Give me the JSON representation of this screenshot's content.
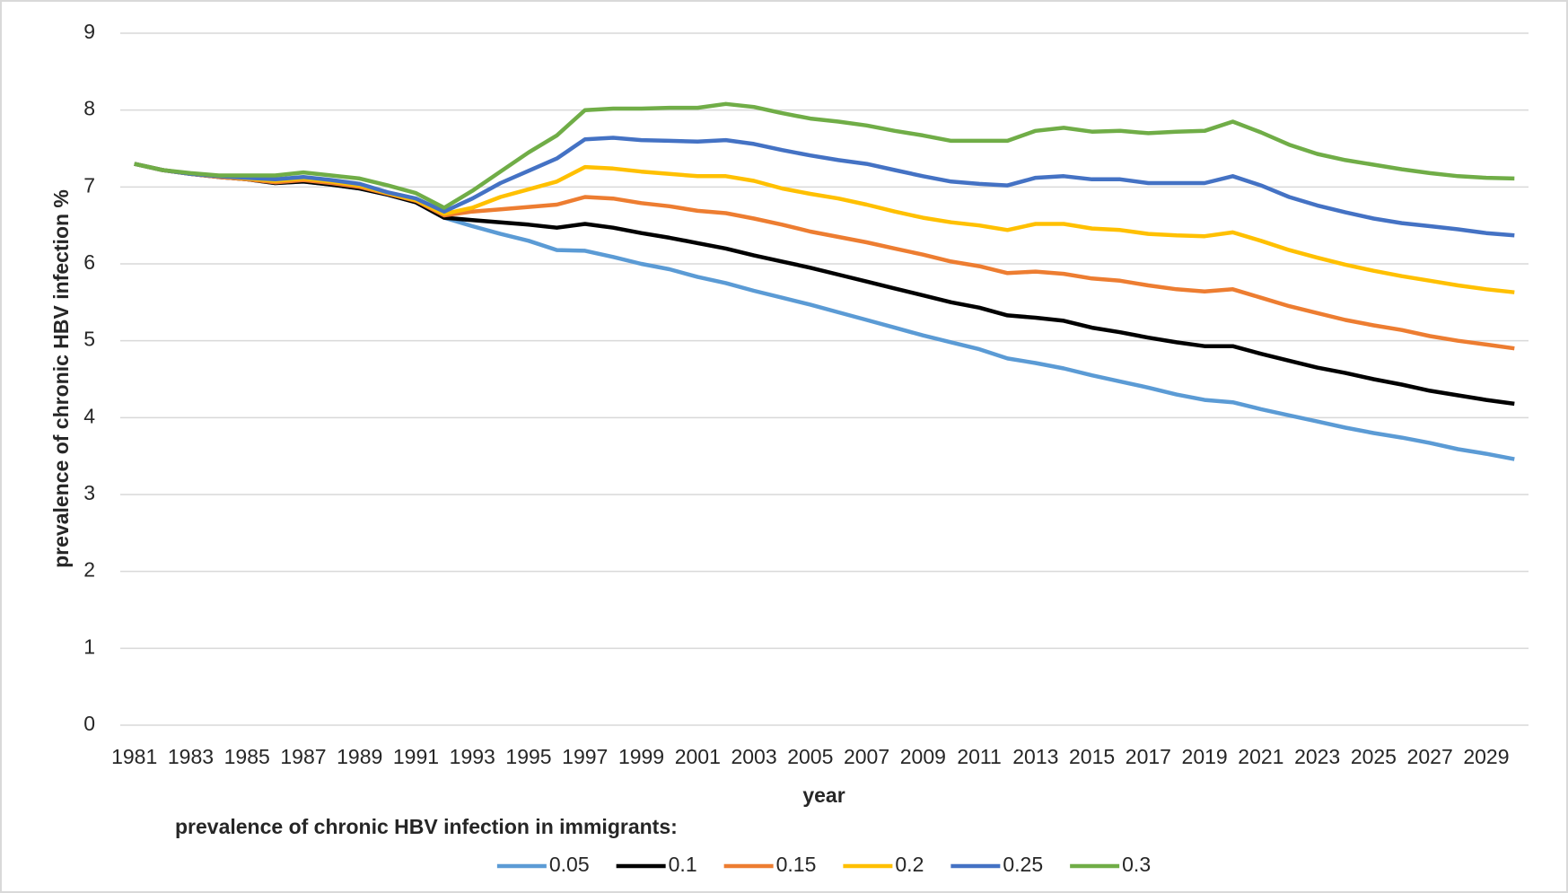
{
  "chart_data": {
    "type": "line",
    "y_label": "prevalence of chronic HBV infection %",
    "x_label": "year",
    "legend_title": "prevalence of chronic HBV infection in immigrants:",
    "categories": [
      "1981",
      null,
      "1983",
      null,
      "1985",
      null,
      "1987",
      null,
      "1989",
      null,
      "1991",
      null,
      "1993",
      null,
      "1995",
      null,
      "1997",
      null,
      "1999",
      null,
      "2001",
      null,
      "2003",
      null,
      "2005",
      null,
      "2007",
      null,
      "2009",
      null,
      "2011",
      null,
      "2013",
      null,
      "2015",
      null,
      "2017",
      null,
      "2019",
      null,
      "2021",
      null,
      "2023",
      null,
      "2025",
      null,
      "2027",
      null,
      "2029",
      null
    ],
    "series": [
      {
        "name": "0.05",
        "color": "#5b9bd5",
        "values": [
          7.3,
          7.22,
          7.17,
          7.13,
          7.1,
          7.05,
          7.07,
          7.03,
          6.98,
          6.9,
          6.8,
          6.6,
          6.49,
          6.39,
          6.3,
          6.18,
          6.17,
          6.09,
          6.0,
          5.93,
          5.83,
          5.75,
          5.65,
          5.56,
          5.47,
          5.37,
          5.27,
          5.17,
          5.07,
          4.98,
          4.89,
          4.77,
          4.71,
          4.64,
          4.55,
          4.47,
          4.39,
          4.3,
          4.23,
          4.2,
          4.11,
          4.03,
          3.95,
          3.87,
          3.8,
          3.74,
          3.67,
          3.59,
          3.53,
          3.46
        ]
      },
      {
        "name": "0.1",
        "color": "#000000",
        "values": [
          7.3,
          7.22,
          7.17,
          7.13,
          7.1,
          7.05,
          7.07,
          7.03,
          6.98,
          6.9,
          6.8,
          6.6,
          6.57,
          6.54,
          6.51,
          6.47,
          6.52,
          6.47,
          6.4,
          6.34,
          6.27,
          6.2,
          6.11,
          6.03,
          5.95,
          5.86,
          5.77,
          5.68,
          5.59,
          5.5,
          5.43,
          5.33,
          5.3,
          5.26,
          5.17,
          5.11,
          5.04,
          4.98,
          4.93,
          4.93,
          4.83,
          4.74,
          4.65,
          4.58,
          4.5,
          4.43,
          4.35,
          4.29,
          4.23,
          4.18
        ]
      },
      {
        "name": "0.15",
        "color": "#ed7d31",
        "values": [
          7.3,
          7.22,
          7.17,
          7.13,
          7.1,
          7.06,
          7.09,
          7.05,
          7.0,
          6.91,
          6.82,
          6.63,
          6.68,
          6.71,
          6.74,
          6.77,
          6.87,
          6.85,
          6.79,
          6.75,
          6.69,
          6.66,
          6.59,
          6.51,
          6.42,
          6.35,
          6.28,
          6.2,
          6.12,
          6.03,
          5.97,
          5.88,
          5.9,
          5.87,
          5.81,
          5.78,
          5.72,
          5.67,
          5.64,
          5.67,
          5.56,
          5.45,
          5.36,
          5.27,
          5.2,
          5.14,
          5.06,
          5.0,
          4.95,
          4.9
        ]
      },
      {
        "name": "0.2",
        "color": "#ffc000",
        "values": [
          7.3,
          7.22,
          7.17,
          7.14,
          7.11,
          7.08,
          7.11,
          7.07,
          7.02,
          6.92,
          6.83,
          6.65,
          6.73,
          6.87,
          6.97,
          7.07,
          7.26,
          7.24,
          7.2,
          7.17,
          7.14,
          7.14,
          7.08,
          6.98,
          6.91,
          6.85,
          6.77,
          6.68,
          6.6,
          6.54,
          6.5,
          6.44,
          6.52,
          6.52,
          6.46,
          6.44,
          6.39,
          6.37,
          6.36,
          6.41,
          6.3,
          6.18,
          6.08,
          5.99,
          5.91,
          5.84,
          5.78,
          5.72,
          5.67,
          5.63
        ]
      },
      {
        "name": "0.25",
        "color": "#4472c4",
        "values": [
          7.3,
          7.22,
          7.17,
          7.14,
          7.12,
          7.1,
          7.13,
          7.09,
          7.04,
          6.93,
          6.85,
          6.68,
          6.85,
          7.05,
          7.21,
          7.37,
          7.62,
          7.64,
          7.61,
          7.6,
          7.59,
          7.61,
          7.56,
          7.48,
          7.41,
          7.35,
          7.3,
          7.22,
          7.14,
          7.07,
          7.04,
          7.02,
          7.12,
          7.14,
          7.1,
          7.1,
          7.05,
          7.05,
          7.05,
          7.14,
          7.02,
          6.87,
          6.76,
          6.67,
          6.59,
          6.53,
          6.49,
          6.45,
          6.4,
          6.37
        ]
      },
      {
        "name": "0.3",
        "color": "#70ad47",
        "values": [
          7.3,
          7.22,
          7.18,
          7.15,
          7.15,
          7.15,
          7.19,
          7.15,
          7.11,
          7.02,
          6.92,
          6.73,
          6.95,
          7.2,
          7.45,
          7.67,
          8.0,
          8.02,
          8.02,
          8.03,
          8.03,
          8.08,
          8.04,
          7.96,
          7.89,
          7.85,
          7.8,
          7.73,
          7.67,
          7.6,
          7.6,
          7.6,
          7.73,
          7.77,
          7.72,
          7.73,
          7.7,
          7.72,
          7.73,
          7.85,
          7.71,
          7.55,
          7.43,
          7.35,
          7.29,
          7.23,
          7.18,
          7.14,
          7.12,
          7.11
        ]
      }
    ],
    "ylim": [
      0,
      9
    ],
    "yticks": [
      0,
      1,
      2,
      3,
      4,
      5,
      6,
      7,
      8,
      9
    ],
    "grid": true
  }
}
